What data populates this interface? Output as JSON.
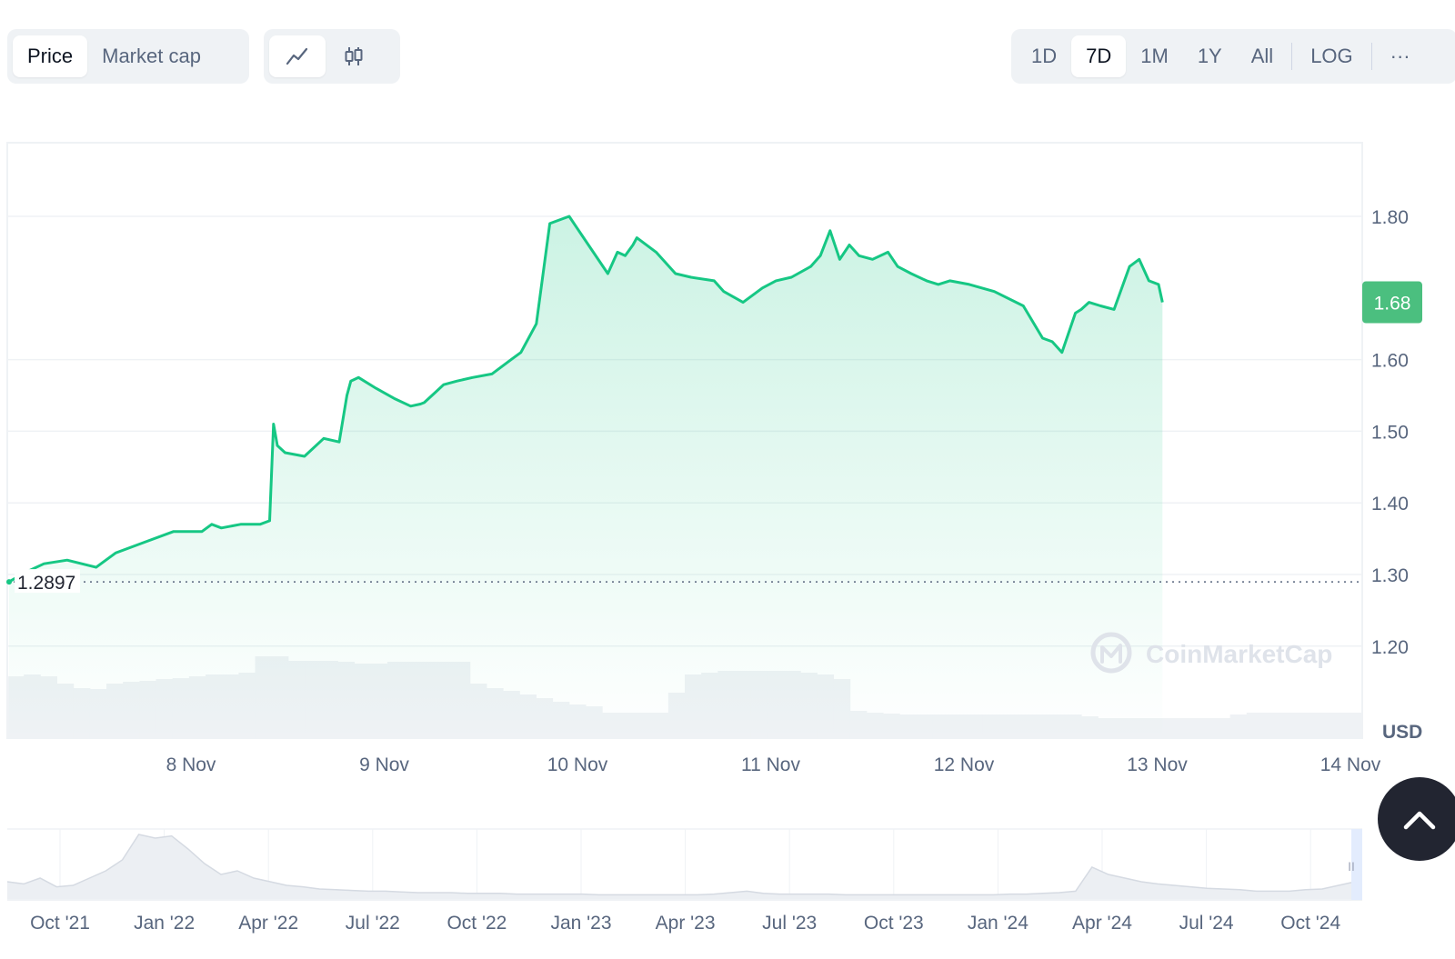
{
  "toolbar": {
    "metric_tabs": [
      {
        "label": "Price",
        "active": true
      },
      {
        "label": "Market cap",
        "active": false
      }
    ],
    "chart_types": [
      {
        "icon": "line-chart-icon",
        "active": true
      },
      {
        "icon": "candlestick-icon",
        "active": false
      }
    ],
    "ranges": [
      {
        "label": "1D",
        "active": false
      },
      {
        "label": "7D",
        "active": true
      },
      {
        "label": "1M",
        "active": false
      },
      {
        "label": "1Y",
        "active": false
      },
      {
        "label": "All",
        "active": false
      }
    ],
    "log_label": "LOG",
    "more_label": "···"
  },
  "colors": {
    "line": "#16c784",
    "badge": "#4bbf7f",
    "grid": "#eff2f5",
    "text": "#58667e",
    "volume": "#eff2f5"
  },
  "chart_data": {
    "type": "area",
    "currency_label": "USD",
    "ylim": [
      1.15,
      1.9
    ],
    "y_ticks": [
      "1.80",
      "1.60",
      "1.50",
      "1.40",
      "1.30",
      "1.20"
    ],
    "x_labels": [
      "8 Nov",
      "9 Nov",
      "10 Nov",
      "11 Nov",
      "12 Nov",
      "13 Nov",
      "14 Nov"
    ],
    "current_price": "1.68",
    "open_price": "1.2897",
    "watermark": "CoinMarketCap",
    "x_days": [
      0.0,
      0.1,
      0.18,
      0.3,
      0.45,
      0.55,
      0.7,
      0.85,
      0.95,
      1.0,
      1.05,
      1.15,
      1.25,
      1.3,
      1.32,
      1.34,
      1.38,
      1.48,
      1.58,
      1.66,
      1.7,
      1.72,
      1.76,
      1.85,
      1.95,
      2.03,
      2.08,
      2.1,
      2.16,
      2.2,
      2.27,
      2.35,
      2.45,
      2.55,
      2.6,
      2.68,
      2.75,
      2.85,
      2.95,
      3.05,
      3.1,
      3.14,
      3.18,
      3.2,
      3.3,
      3.4,
      3.48,
      3.6,
      3.65,
      3.75,
      3.85,
      3.92,
      4.0,
      4.1,
      4.15,
      4.2,
      4.25,
      4.3,
      4.35,
      4.42,
      4.5,
      4.55,
      4.62,
      4.7,
      4.76,
      4.82,
      4.92,
      5.05,
      5.2,
      5.3,
      5.35,
      5.4,
      5.47,
      5.5,
      5.54,
      5.6,
      5.67,
      5.75,
      5.8,
      5.85,
      5.9,
      5.92
    ],
    "prices": [
      1.29,
      1.305,
      1.315,
      1.32,
      1.31,
      1.33,
      1.345,
      1.36,
      1.36,
      1.37,
      1.365,
      1.37,
      1.37,
      1.375,
      1.51,
      1.48,
      1.47,
      1.465,
      1.49,
      1.485,
      1.55,
      1.57,
      1.575,
      1.56,
      1.545,
      1.535,
      1.538,
      1.54,
      1.555,
      1.565,
      1.57,
      1.575,
      1.58,
      1.6,
      1.61,
      1.65,
      1.79,
      1.8,
      1.76,
      1.72,
      1.75,
      1.745,
      1.76,
      1.77,
      1.75,
      1.72,
      1.715,
      1.71,
      1.695,
      1.68,
      1.7,
      1.71,
      1.715,
      1.73,
      1.745,
      1.78,
      1.74,
      1.76,
      1.745,
      1.74,
      1.75,
      1.73,
      1.72,
      1.71,
      1.705,
      1.71,
      1.705,
      1.695,
      1.675,
      1.63,
      1.625,
      1.61,
      1.665,
      1.67,
      1.68,
      1.675,
      1.67,
      1.73,
      1.74,
      1.71,
      1.705,
      1.68
    ],
    "volume": [
      0.68,
      0.7,
      0.68,
      0.6,
      0.55,
      0.54,
      0.6,
      0.62,
      0.63,
      0.65,
      0.66,
      0.68,
      0.7,
      0.7,
      0.72,
      0.9,
      0.9,
      0.85,
      0.85,
      0.85,
      0.84,
      0.82,
      0.82,
      0.84,
      0.84,
      0.84,
      0.84,
      0.84,
      0.6,
      0.55,
      0.52,
      0.48,
      0.44,
      0.4,
      0.37,
      0.35,
      0.28,
      0.28,
      0.28,
      0.28,
      0.5,
      0.7,
      0.72,
      0.74,
      0.74,
      0.74,
      0.74,
      0.74,
      0.72,
      0.7,
      0.65,
      0.3,
      0.28,
      0.27,
      0.26,
      0.26,
      0.26,
      0.26,
      0.26,
      0.26,
      0.26,
      0.26,
      0.26,
      0.26,
      0.26,
      0.24,
      0.22,
      0.22,
      0.22,
      0.22,
      0.22,
      0.22,
      0.22,
      0.22,
      0.26,
      0.28,
      0.28,
      0.28,
      0.28,
      0.28,
      0.28,
      0.28
    ]
  },
  "navigator": {
    "x_labels": [
      "Oct '21",
      "Jan '22",
      "Apr '22",
      "Jul '22",
      "Oct '22",
      "Jan '23",
      "Apr '23",
      "Jul '23",
      "Oct '23",
      "Jan '24",
      "Apr '24",
      "Jul '24",
      "Oct '24"
    ],
    "handle_label": "II",
    "series": [
      0.25,
      0.22,
      0.3,
      0.18,
      0.2,
      0.3,
      0.4,
      0.55,
      0.9,
      0.85,
      0.88,
      0.7,
      0.5,
      0.35,
      0.4,
      0.3,
      0.25,
      0.2,
      0.18,
      0.15,
      0.14,
      0.13,
      0.12,
      0.12,
      0.11,
      0.1,
      0.1,
      0.1,
      0.09,
      0.09,
      0.09,
      0.08,
      0.08,
      0.08,
      0.08,
      0.08,
      0.07,
      0.07,
      0.07,
      0.07,
      0.07,
      0.07,
      0.07,
      0.08,
      0.1,
      0.12,
      0.09,
      0.08,
      0.08,
      0.08,
      0.08,
      0.07,
      0.07,
      0.07,
      0.07,
      0.07,
      0.07,
      0.07,
      0.07,
      0.07,
      0.07,
      0.08,
      0.08,
      0.09,
      0.1,
      0.12,
      0.45,
      0.35,
      0.3,
      0.25,
      0.22,
      0.2,
      0.18,
      0.16,
      0.15,
      0.14,
      0.12,
      0.12,
      0.12,
      0.14,
      0.15,
      0.2,
      0.25
    ]
  }
}
